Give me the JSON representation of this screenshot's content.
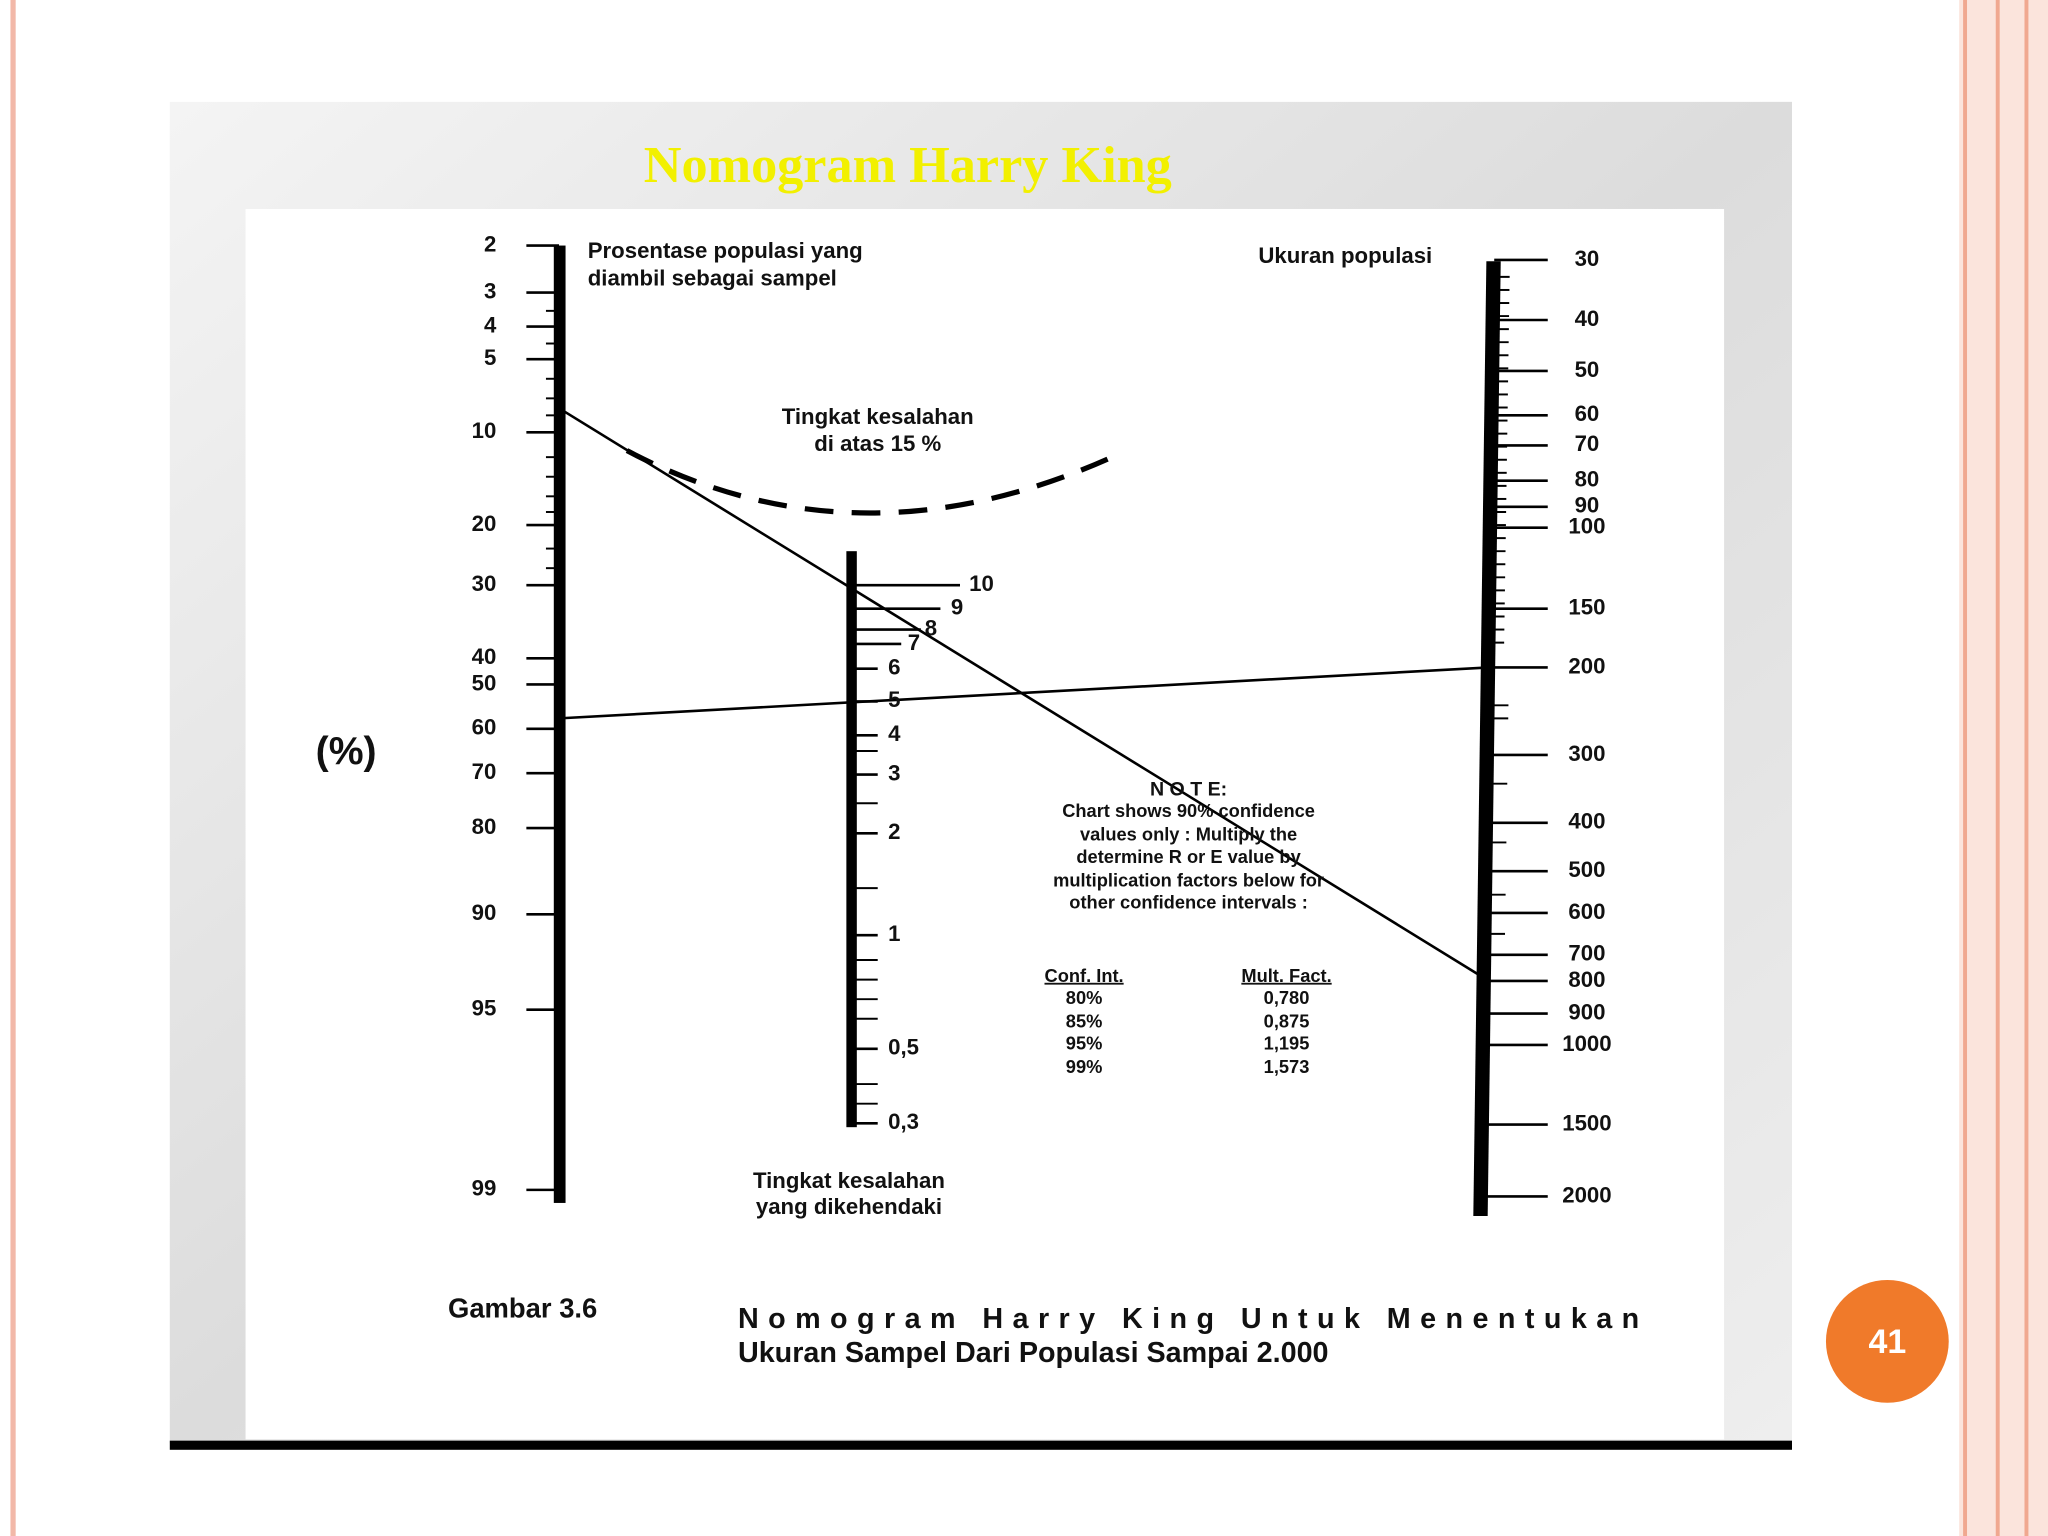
{
  "slide": {
    "title": "Nomogram Harry King",
    "page_number": "41"
  },
  "nomogram": {
    "percent_scale": {
      "label": [
        "Prosentase populasi yang",
        "diambil sebagai sampel"
      ],
      "unit": "(%)",
      "ticks": [
        "2",
        "3",
        "4",
        "5",
        "10",
        "20",
        "30",
        "40",
        "50",
        "60",
        "70",
        "80",
        "90",
        "95",
        "99"
      ]
    },
    "error_scale": {
      "label": [
        "Tingkat kesalahan",
        "yang dikehendaki"
      ],
      "ticks": [
        "10",
        "9",
        "8",
        "7",
        "6",
        "5",
        "4",
        "3",
        "2",
        "1",
        "0,5",
        "0,3"
      ]
    },
    "population_scale": {
      "label": "Ukuran populasi",
      "ticks": [
        "30",
        "40",
        "50",
        "60",
        "70",
        "80",
        "90",
        "100",
        "150",
        "200",
        "300",
        "400",
        "500",
        "600",
        "700",
        "800",
        "900",
        "1000",
        "1500",
        "2000"
      ]
    },
    "error_region": [
      "Tingkat kesalahan",
      "di atas 15 %"
    ],
    "note": {
      "title": "N O T E:",
      "lines": [
        "Chart shows 90% confidence",
        "values only : Multiply the",
        "determine R or E value by",
        "multiplication factors below for",
        "other confidence intervals :"
      ],
      "table": {
        "header": [
          "Conf. Int.",
          "Mult. Fact."
        ],
        "rows": [
          [
            "80%",
            "0,780"
          ],
          [
            "85%",
            "0,875"
          ],
          [
            "95%",
            "1,195"
          ],
          [
            "99%",
            "1,573"
          ]
        ]
      }
    }
  },
  "caption": {
    "label": "Gambar 3.6",
    "lines": [
      "Nomogram Harry King Untuk Menentukan",
      "Ukuran Sampel Dari Populasi Sampai 2.000"
    ]
  }
}
